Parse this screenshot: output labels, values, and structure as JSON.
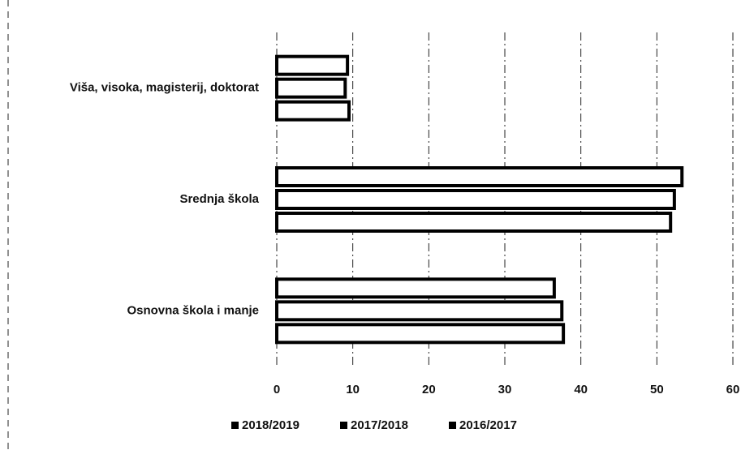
{
  "chart_data": {
    "type": "barh",
    "categories": [
      "Osnovna škola i manje",
      "Srednja škola",
      "Viša, visoka, magisterij, doktorat"
    ],
    "series": [
      {
        "name": "2018/2019",
        "color": "#000000",
        "values": [
          37.7,
          51.8,
          9.5
        ]
      },
      {
        "name": "2017/2018",
        "color": "#000000",
        "values": [
          37.5,
          52.3,
          9.0
        ]
      },
      {
        "name": "2016/2017",
        "color": "#000000",
        "values": [
          36.5,
          53.3,
          9.3
        ]
      }
    ],
    "xlim": [
      0,
      60
    ],
    "xticks": [
      0,
      10,
      20,
      30,
      40,
      50,
      60
    ],
    "grid": true,
    "legend": "bottom"
  }
}
